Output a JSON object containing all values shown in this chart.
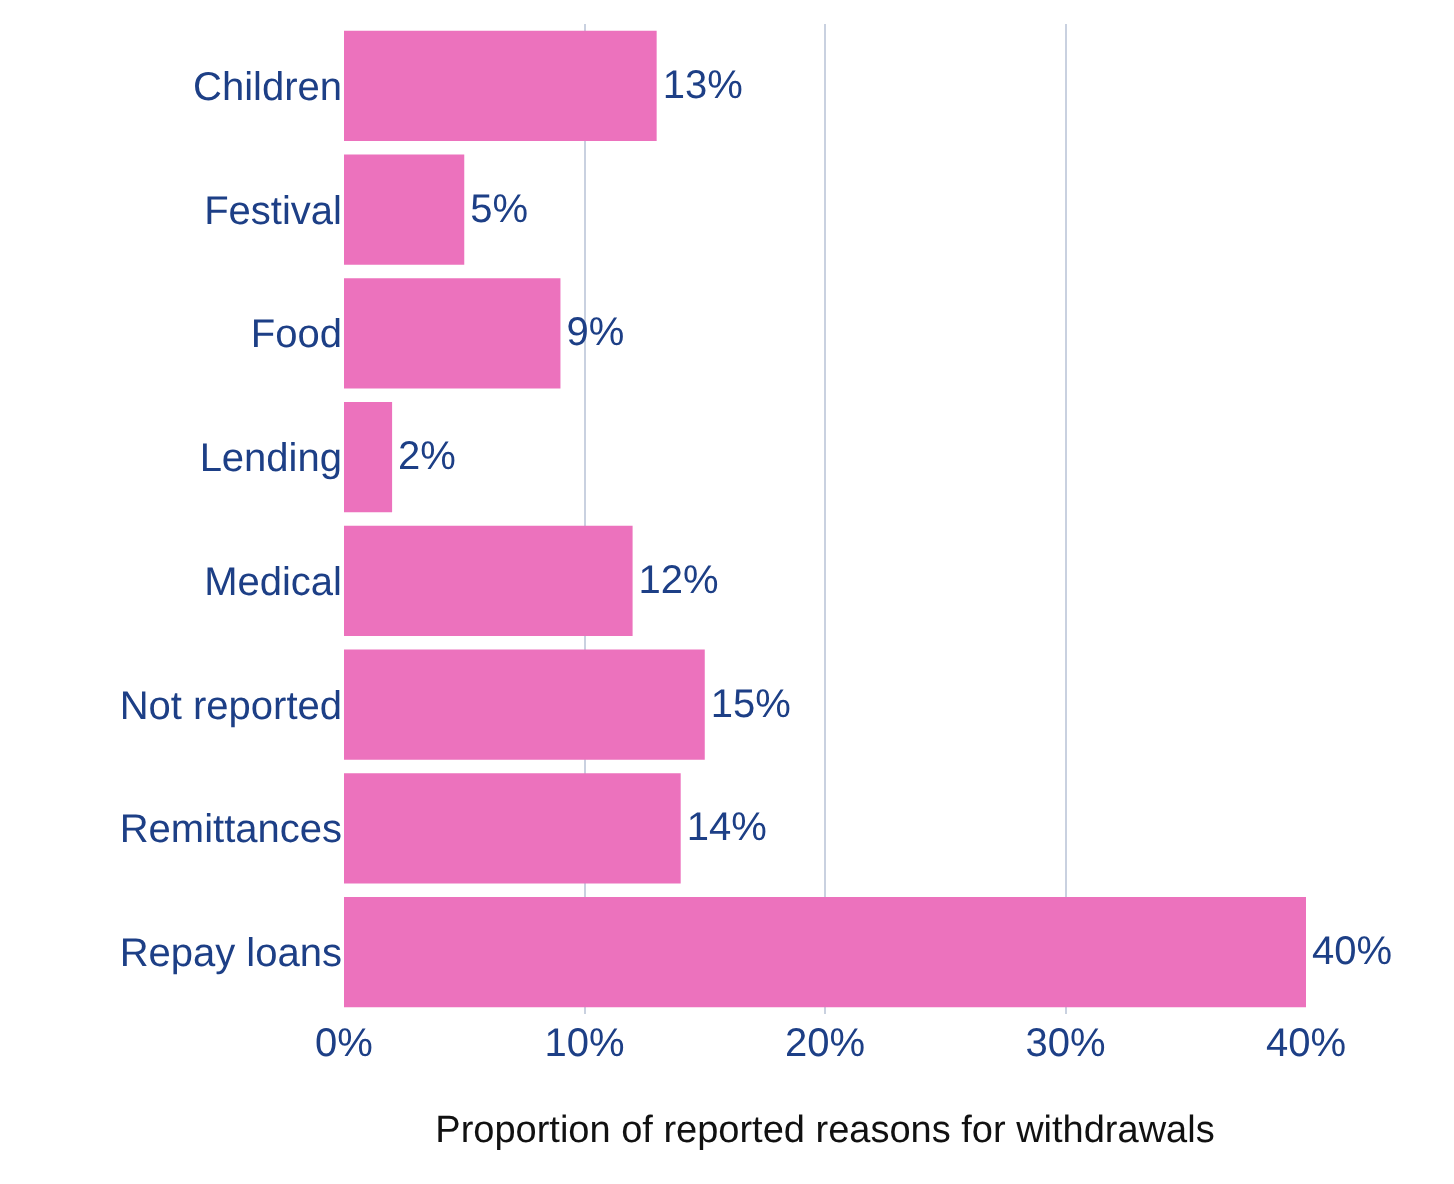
{
  "chart_data": {
    "type": "bar",
    "orientation": "horizontal",
    "xlabel": "Proportion of reported reasons for withdrawals",
    "categories": [
      "Children",
      "Festival",
      "Food",
      "Lending",
      "Medical",
      "Not reported",
      "Remittances",
      "Repay loans"
    ],
    "values": [
      13,
      5,
      9,
      2,
      12,
      15,
      14,
      40
    ],
    "value_labels": [
      "13%",
      "5%",
      "9%",
      "2%",
      "12%",
      "15%",
      "14%",
      "40%"
    ],
    "color": "#ec72bd",
    "xlim": [
      0,
      40
    ],
    "xticks": [
      {
        "value": 0,
        "label": "0%"
      },
      {
        "value": 10,
        "label": "10%"
      },
      {
        "value": 20,
        "label": "20%"
      },
      {
        "value": 30,
        "label": "30%"
      },
      {
        "value": 40,
        "label": "40%"
      }
    ],
    "grid": "x",
    "legend": false
  }
}
